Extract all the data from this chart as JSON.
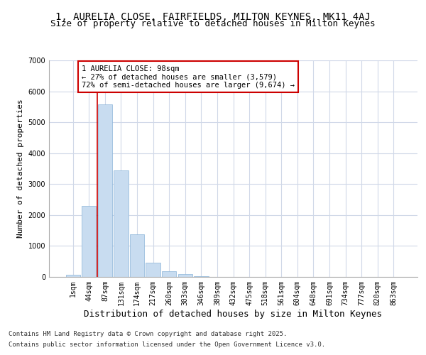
{
  "title_line1": "1, AURELIA CLOSE, FAIRFIELDS, MILTON KEYNES, MK11 4AJ",
  "title_line2": "Size of property relative to detached houses in Milton Keynes",
  "xlabel": "Distribution of detached houses by size in Milton Keynes",
  "ylabel": "Number of detached properties",
  "categories": [
    "1sqm",
    "44sqm",
    "87sqm",
    "131sqm",
    "174sqm",
    "217sqm",
    "260sqm",
    "303sqm",
    "346sqm",
    "389sqm",
    "432sqm",
    "475sqm",
    "518sqm",
    "561sqm",
    "604sqm",
    "648sqm",
    "691sqm",
    "734sqm",
    "777sqm",
    "820sqm",
    "863sqm"
  ],
  "values": [
    80,
    2300,
    5580,
    3450,
    1380,
    460,
    175,
    100,
    25,
    5,
    2,
    0,
    0,
    0,
    0,
    0,
    0,
    0,
    0,
    0,
    0
  ],
  "bar_color": "#c8dcf0",
  "bar_edge_color": "#8ab4d8",
  "vline_x": 1.5,
  "vline_color": "#cc0000",
  "annotation_text": "1 AURELIA CLOSE: 98sqm\n← 27% of detached houses are smaller (3,579)\n72% of semi-detached houses are larger (9,674) →",
  "annotation_box_color": "#cc0000",
  "ylim": [
    0,
    7000
  ],
  "yticks": [
    0,
    1000,
    2000,
    3000,
    4000,
    5000,
    6000,
    7000
  ],
  "background_color": "#ffffff",
  "plot_bg_color": "#ffffff",
  "grid_color": "#d0d8e8",
  "footer_line1": "Contains HM Land Registry data © Crown copyright and database right 2025.",
  "footer_line2": "Contains public sector information licensed under the Open Government Licence v3.0.",
  "title_fontsize": 10,
  "subtitle_fontsize": 9,
  "tick_fontsize": 7,
  "xlabel_fontsize": 9,
  "ylabel_fontsize": 8,
  "footer_fontsize": 6.5
}
